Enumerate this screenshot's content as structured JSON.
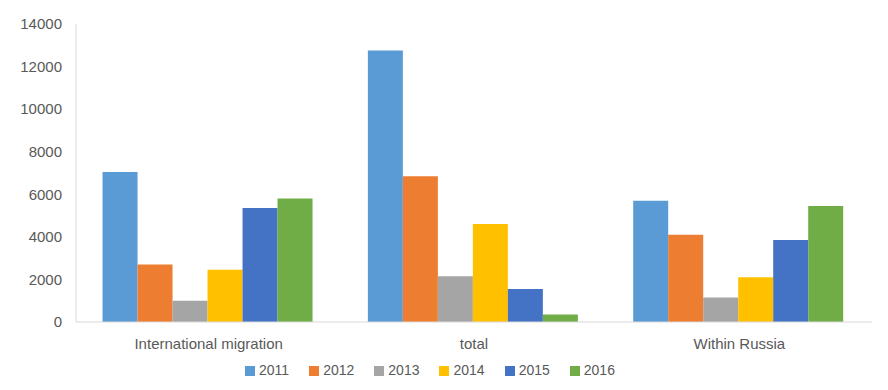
{
  "chart_data": {
    "type": "bar",
    "categories": [
      "International migration",
      "total",
      "Within Russia"
    ],
    "series": [
      {
        "name": "2011",
        "color": "#5b9bd5",
        "values": [
          7050,
          12750,
          5700
        ]
      },
      {
        "name": "2012",
        "color": "#ed7d31",
        "values": [
          2700,
          6850,
          4100
        ]
      },
      {
        "name": "2013",
        "color": "#a5a5a5",
        "values": [
          1000,
          2150,
          1150
        ]
      },
      {
        "name": "2014",
        "color": "#ffc000",
        "values": [
          2450,
          4600,
          2100
        ]
      },
      {
        "name": "2015",
        "color": "#4472c4",
        "values": [
          5350,
          1550,
          3850
        ]
      },
      {
        "name": "2016",
        "color": "#70ad47",
        "values": [
          5800,
          350,
          5450
        ]
      }
    ],
    "ylim": [
      0,
      14000
    ],
    "yticks": [
      0,
      2000,
      4000,
      6000,
      8000,
      10000,
      12000,
      14000
    ],
    "grid": false,
    "legend": "bottom"
  }
}
